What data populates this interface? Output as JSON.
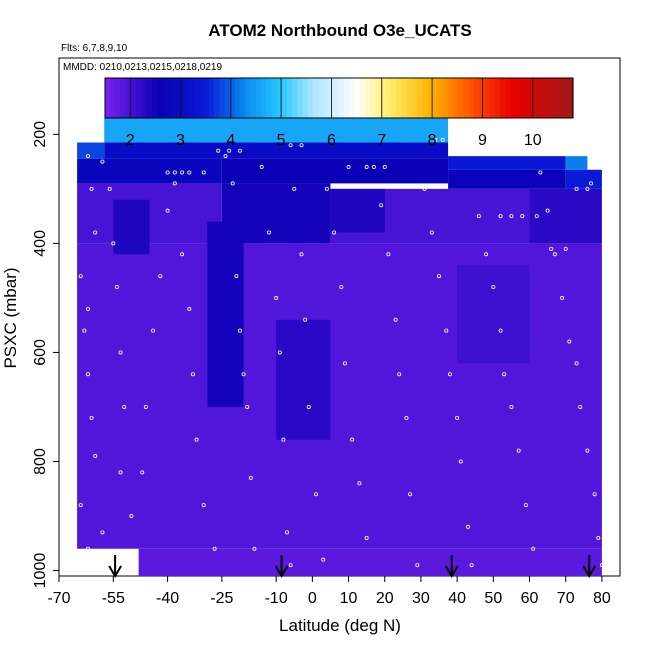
{
  "chart_data": {
    "type": "heatmap",
    "title": "ATOM2 Northbound O3e_UCATS",
    "subtitle_flights": "Flts: 6,7,8,9,10",
    "subtitle_dates": "MMDD: 0210,0213,0215,0218,0219",
    "xlabel": "Latitude (deg N)",
    "ylabel": "PSXC (mbar)",
    "xlim": [
      -70,
      85
    ],
    "ylim": [
      1010,
      60
    ],
    "x_ticks": [
      {
        "value": -70,
        "label": "-70"
      },
      {
        "value": -55,
        "label": "-55"
      },
      {
        "value": -40,
        "label": "-40"
      },
      {
        "value": -25,
        "label": "-25"
      },
      {
        "value": -10,
        "label": "-10"
      },
      {
        "value": 0,
        "label": "0"
      },
      {
        "value": 10,
        "label": "10"
      },
      {
        "value": 20,
        "label": "20"
      },
      {
        "value": 30,
        "label": "30"
      },
      {
        "value": 40,
        "label": "40"
      },
      {
        "value": 50,
        "label": "50"
      },
      {
        "value": 60,
        "label": "60"
      },
      {
        "value": 70,
        "label": "70"
      },
      {
        "value": 80,
        "label": "80"
      }
    ],
    "y_ticks": [
      {
        "value": 200,
        "label": "200"
      },
      {
        "value": 400,
        "label": "400"
      },
      {
        "value": 600,
        "label": "600"
      },
      {
        "value": 800,
        "label": "800"
      },
      {
        "value": 1000,
        "label": "1000"
      }
    ],
    "colorbar": {
      "range": [
        1.5,
        10.8
      ],
      "ticks": [
        "2",
        "3",
        "4",
        "5",
        "6",
        "7",
        "8",
        "9",
        "10"
      ],
      "stops": [
        {
          "v": 1.5,
          "c": "#7a22ee"
        },
        {
          "v": 2.6,
          "c": "#0a00b5"
        },
        {
          "v": 3.5,
          "c": "#0a1ad8"
        },
        {
          "v": 4.3,
          "c": "#0a8cf0"
        },
        {
          "v": 5.0,
          "c": "#28c8ff"
        },
        {
          "v": 5.6,
          "c": "#a8e4ff"
        },
        {
          "v": 6.5,
          "c": "#ffffff"
        },
        {
          "v": 7.1,
          "c": "#fff070"
        },
        {
          "v": 8.0,
          "c": "#ffb000"
        },
        {
          "v": 8.8,
          "c": "#ff5000"
        },
        {
          "v": 9.6,
          "c": "#e80000"
        },
        {
          "v": 10.8,
          "c": "#a01818"
        }
      ]
    },
    "cells": [
      {
        "lat": [
          -57.5,
          37.5
        ],
        "p": [
          170,
          215
        ],
        "value": 4.6
      },
      {
        "lat": [
          -65,
          -57.5
        ],
        "p": [
          215,
          245
        ],
        "value": 3.8
      },
      {
        "lat": [
          -57.5,
          37.5
        ],
        "p": [
          215,
          245
        ],
        "value": 3.0
      },
      {
        "lat": [
          37.5,
          70
        ],
        "p": [
          240,
          265
        ],
        "value": 3.4
      },
      {
        "lat": [
          70,
          76
        ],
        "p": [
          240,
          265
        ],
        "value": 4.2
      },
      {
        "lat": [
          -65,
          -25
        ],
        "p": [
          245,
          290
        ],
        "value": 2.8
      },
      {
        "lat": [
          -25,
          37.5
        ],
        "p": [
          245,
          290
        ],
        "value": 2.6
      },
      {
        "lat": [
          37.5,
          70
        ],
        "p": [
          265,
          300
        ],
        "value": 2.7
      },
      {
        "lat": [
          70,
          80
        ],
        "p": [
          265,
          300
        ],
        "value": 3.5
      },
      {
        "lat": [
          -65,
          -25
        ],
        "p": [
          290,
          400
        ],
        "value": 2.0
      },
      {
        "lat": [
          -25,
          5
        ],
        "p": [
          290,
          400
        ],
        "value": 2.5
      },
      {
        "lat": [
          5,
          60
        ],
        "p": [
          300,
          400
        ],
        "value": 2.0
      },
      {
        "lat": [
          60,
          80
        ],
        "p": [
          300,
          400
        ],
        "value": 2.3
      },
      {
        "lat": [
          -65,
          80
        ],
        "p": [
          400,
          960
        ],
        "value": 1.9
      },
      {
        "lat": [
          -29,
          -19
        ],
        "p": [
          360,
          700
        ],
        "value": 2.5
      },
      {
        "lat": [
          -55,
          -45
        ],
        "p": [
          320,
          420
        ],
        "value": 2.4
      },
      {
        "lat": [
          -10,
          5
        ],
        "p": [
          540,
          760
        ],
        "value": 2.3
      },
      {
        "lat": [
          40,
          60
        ],
        "p": [
          440,
          620
        ],
        "value": 2.1
      },
      {
        "lat": [
          5,
          20
        ],
        "p": [
          300,
          380
        ],
        "value": 2.4
      },
      {
        "lat": [
          -48,
          80
        ],
        "p": [
          960,
          1010
        ],
        "value": 1.8
      }
    ],
    "obs_points": [
      [
        -62,
        240
      ],
      [
        -58,
        250
      ],
      [
        -61,
        300
      ],
      [
        -60,
        380
      ],
      [
        -64,
        460
      ],
      [
        -62,
        520
      ],
      [
        -63,
        560
      ],
      [
        -62,
        640
      ],
      [
        -61,
        720
      ],
      [
        -60,
        790
      ],
      [
        -64,
        880
      ],
      [
        -58,
        930
      ],
      [
        -62,
        960
      ],
      [
        -56,
        300
      ],
      [
        -55,
        400
      ],
      [
        -54,
        480
      ],
      [
        -53,
        600
      ],
      [
        -52,
        700
      ],
      [
        -53,
        820
      ],
      [
        -50,
        900
      ],
      [
        -47,
        820
      ],
      [
        -46,
        700
      ],
      [
        -44,
        560
      ],
      [
        -42,
        460
      ],
      [
        -40,
        340
      ],
      [
        -38,
        290
      ],
      [
        -36,
        420
      ],
      [
        -34,
        520
      ],
      [
        -33,
        640
      ],
      [
        -32,
        760
      ],
      [
        -30,
        880
      ],
      [
        -27,
        960
      ],
      [
        -24,
        240
      ],
      [
        -22,
        290
      ],
      [
        -21,
        460
      ],
      [
        -20,
        560
      ],
      [
        -19,
        640
      ],
      [
        -18,
        700
      ],
      [
        -17,
        830
      ],
      [
        -16,
        960
      ],
      [
        -14,
        260
      ],
      [
        -12,
        380
      ],
      [
        -10,
        500
      ],
      [
        -9,
        600
      ],
      [
        -8,
        760
      ],
      [
        -7,
        930
      ],
      [
        -6,
        990
      ],
      [
        -5,
        300
      ],
      [
        -3,
        420
      ],
      [
        -2,
        540
      ],
      [
        -1,
        700
      ],
      [
        1,
        860
      ],
      [
        3,
        980
      ],
      [
        4,
        300
      ],
      [
        6,
        380
      ],
      [
        8,
        480
      ],
      [
        9,
        620
      ],
      [
        11,
        760
      ],
      [
        13,
        840
      ],
      [
        15,
        940
      ],
      [
        17,
        260
      ],
      [
        19,
        330
      ],
      [
        21,
        420
      ],
      [
        23,
        540
      ],
      [
        24,
        640
      ],
      [
        26,
        720
      ],
      [
        27,
        860
      ],
      [
        29,
        990
      ],
      [
        31,
        300
      ],
      [
        33,
        380
      ],
      [
        35,
        460
      ],
      [
        37,
        560
      ],
      [
        38,
        640
      ],
      [
        40,
        720
      ],
      [
        41,
        800
      ],
      [
        43,
        920
      ],
      [
        44,
        990
      ],
      [
        46,
        350
      ],
      [
        48,
        420
      ],
      [
        50,
        480
      ],
      [
        52,
        560
      ],
      [
        53,
        640
      ],
      [
        55,
        700
      ],
      [
        57,
        780
      ],
      [
        59,
        880
      ],
      [
        61,
        960
      ],
      [
        63,
        270
      ],
      [
        65,
        340
      ],
      [
        67,
        420
      ],
      [
        69,
        500
      ],
      [
        71,
        580
      ],
      [
        73,
        620
      ],
      [
        74,
        700
      ],
      [
        76,
        780
      ],
      [
        78,
        860
      ],
      [
        79,
        940
      ],
      [
        80,
        990
      ],
      [
        -26,
        230
      ],
      [
        -23,
        230
      ],
      [
        -20,
        230
      ],
      [
        -6,
        220
      ],
      [
        -3,
        220
      ],
      [
        34,
        210
      ],
      [
        36,
        210
      ],
      [
        43,
        230
      ],
      [
        48,
        230
      ],
      [
        10,
        260
      ],
      [
        15,
        260
      ],
      [
        20,
        260
      ],
      [
        52,
        350
      ],
      [
        55,
        350
      ],
      [
        58,
        350
      ],
      [
        62,
        350
      ],
      [
        66,
        410
      ],
      [
        70,
        410
      ],
      [
        73,
        300
      ],
      [
        76,
        300
      ],
      [
        77,
        290
      ],
      [
        -40,
        270
      ],
      [
        -38,
        270
      ],
      [
        -36,
        270
      ],
      [
        -30,
        270
      ],
      [
        -34,
        270
      ]
    ],
    "arrows": [
      {
        "lat": -54.5,
        "label": ""
      },
      {
        "lat": -8.5,
        "label": ""
      },
      {
        "lat": 38.5,
        "label": ""
      },
      {
        "lat": 76.5,
        "label": ""
      }
    ]
  }
}
